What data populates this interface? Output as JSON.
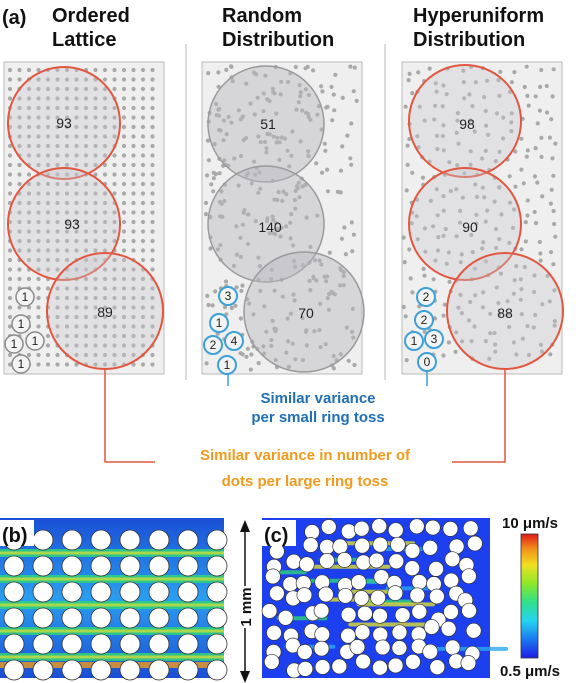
{
  "panel_label_a": "(a)",
  "panel_label_b": "(b)",
  "panel_label_c": "(c)",
  "columns": [
    {
      "title1": "Ordered",
      "title2": "Lattice",
      "big_counts": [
        "93",
        "93",
        "89"
      ],
      "small_counts": [
        "1",
        "1",
        "1",
        "1",
        "1"
      ],
      "ring_color": "#e2573f",
      "small_ring_color": "#8a8a8a"
    },
    {
      "title1": "Random",
      "title2": "Distribution",
      "big_counts": [
        "51",
        "140",
        "70"
      ],
      "small_counts": [
        "3",
        "1",
        "2",
        "4",
        "1"
      ],
      "ring_color": "#9a9a9a",
      "small_ring_color": "#3ea0d8"
    },
    {
      "title1": "Hyperuniform",
      "title2": "Distribution",
      "big_counts": [
        "98",
        "90",
        "88"
      ],
      "small_counts": [
        "2",
        "2",
        "1",
        "3",
        "0"
      ],
      "ring_color": "#e2573f",
      "small_ring_color": "#3ea0d8"
    }
  ],
  "caption_blue_1": "Similar variance",
  "caption_blue_2": "per small ring toss",
  "caption_orange_1": "Similar variance in number of",
  "caption_orange_2": "dots per large ring toss",
  "scale_label": "1 mm",
  "colorbar_max": "10 μm/s",
  "colorbar_min": "0.5 μm/s",
  "colors": {
    "blue_text": "#1f6fb5",
    "orange_text": "#f29a1c",
    "red_ring": "#e2573f",
    "cyan_ring": "#3ea0d8"
  }
}
